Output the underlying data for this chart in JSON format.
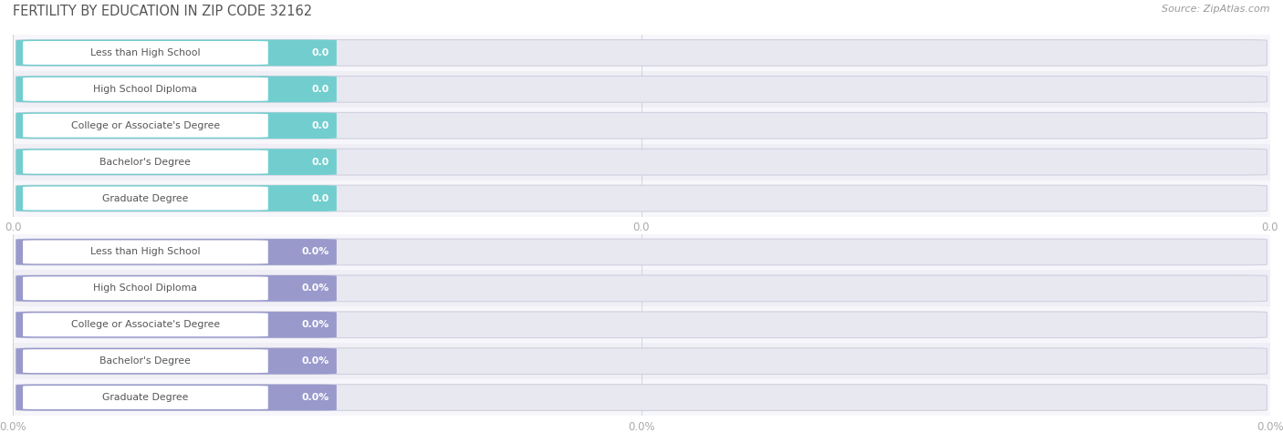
{
  "title": "FERTILITY BY EDUCATION IN ZIP CODE 32162",
  "source": "Source: ZipAtlas.com",
  "categories": [
    "Less than High School",
    "High School Diploma",
    "College or Associate's Degree",
    "Bachelor's Degree",
    "Graduate Degree"
  ],
  "top_values": [
    0.0,
    0.0,
    0.0,
    0.0,
    0.0
  ],
  "bottom_values": [
    0.0,
    0.0,
    0.0,
    0.0,
    0.0
  ],
  "top_bar_color": "#72cece",
  "bottom_bar_color": "#9999cc",
  "label_text_color": "#555555",
  "value_text_color_top": "#ffffff",
  "value_text_color_bot": "#aaaacc",
  "axis_label_color": "#aaaaaa",
  "title_color": "#555555",
  "source_color": "#999999",
  "row_bg_light": "#f7f7fb",
  "row_bg_dark": "#efeff5",
  "pill_bg_color": "#e8e8f0",
  "white_label_bg": "#ffffff",
  "top_tick_labels": [
    "0.0",
    "0.0",
    "0.0"
  ],
  "bottom_tick_labels": [
    "0.0%",
    "0.0%",
    "0.0%"
  ],
  "figsize": [
    14.06,
    4.75
  ],
  "dpi": 100
}
